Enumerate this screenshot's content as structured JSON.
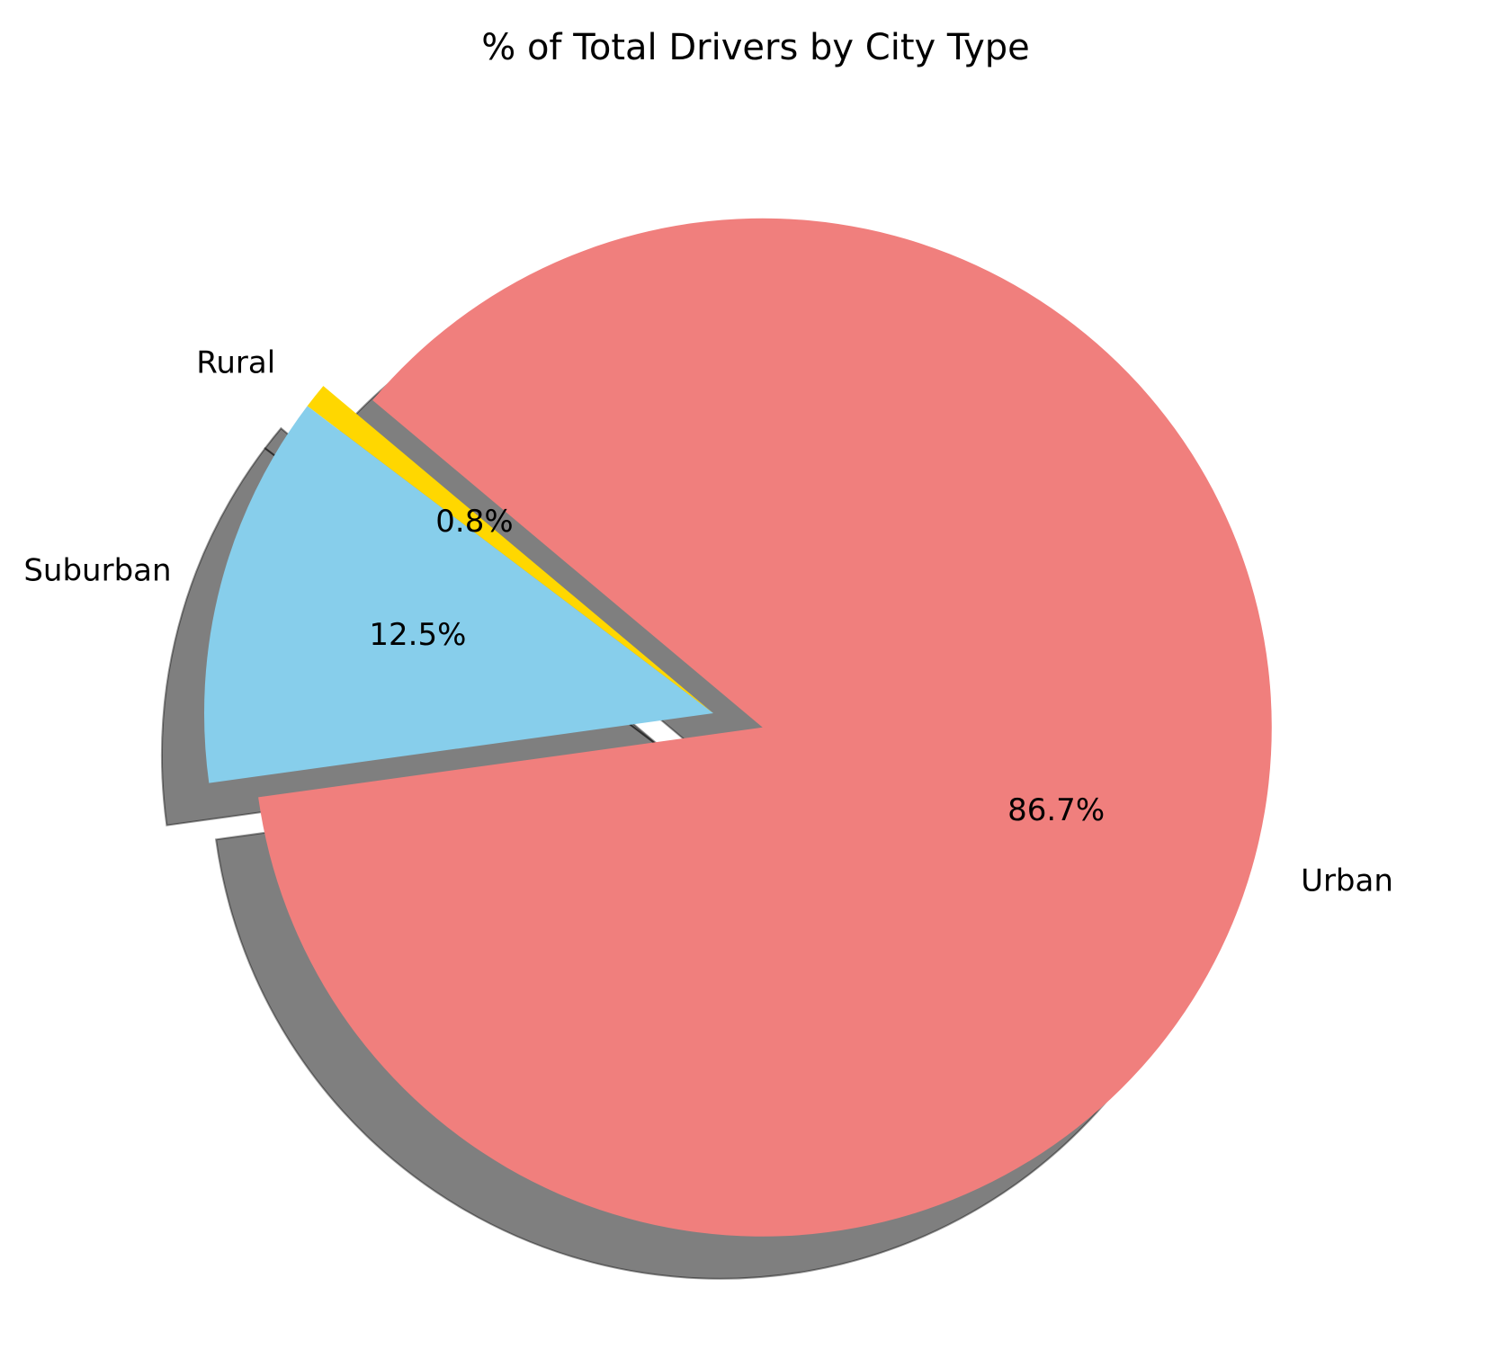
{
  "chart_data": {
    "type": "pie",
    "title": "% of Total Drivers by City Type",
    "categories": [
      "Rural",
      "Suburban",
      "Urban"
    ],
    "values": [
      0.8,
      12.5,
      86.7
    ],
    "value_labels": [
      "0.8%",
      "12.5%",
      "86.7%"
    ],
    "colors": [
      "#FFD700",
      "#87CEEB",
      "#F07F7D"
    ],
    "shadow": true,
    "exploded": "Urban",
    "legend": "none"
  }
}
